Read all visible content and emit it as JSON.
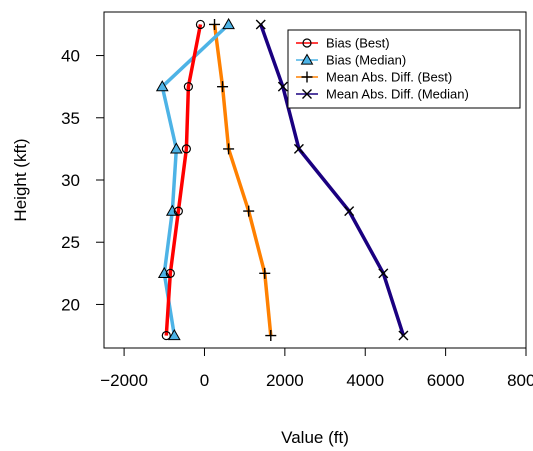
{
  "chart_data": {
    "type": "line",
    "title": "",
    "xlabel": "Value (ft)",
    "ylabel": "Height (kft)",
    "xlim": [
      -2500,
      8000
    ],
    "ylim": [
      16.5,
      43.5
    ],
    "x_ticks": [
      -2000,
      0,
      2000,
      4000,
      6000,
      8000
    ],
    "x_tick_labels": [
      "−2000",
      "0",
      "2000",
      "4000",
      "6000",
      "8000"
    ],
    "y_ticks": [
      20,
      25,
      30,
      35,
      40
    ],
    "y_tick_labels": [
      "20",
      "25",
      "30",
      "35",
      "40"
    ],
    "grid": false,
    "legend_position": "top-right",
    "heights": [
      17.5,
      22.5,
      27.5,
      32.5,
      37.5,
      42.5
    ],
    "series": [
      {
        "name": "Bias (Best)",
        "color": "#ff0000",
        "marker": "circle",
        "values": [
          -950,
          -850,
          -650,
          -450,
          -400,
          -100
        ]
      },
      {
        "name": "Bias (Median)",
        "color": "#4db3e6",
        "marker": "triangle",
        "values": [
          -750,
          -1000,
          -800,
          -700,
          -1050,
          600
        ]
      },
      {
        "name": "Mean Abs. Diff. (Best)",
        "color": "#ff8000",
        "marker": "plus",
        "values": [
          1650,
          1500,
          1100,
          600,
          450,
          250
        ]
      },
      {
        "name": "Mean Abs. Diff. (Median)",
        "color": "#1a0080",
        "marker": "cross",
        "values": [
          4950,
          4450,
          3600,
          2350,
          1950,
          1400
        ]
      }
    ]
  }
}
